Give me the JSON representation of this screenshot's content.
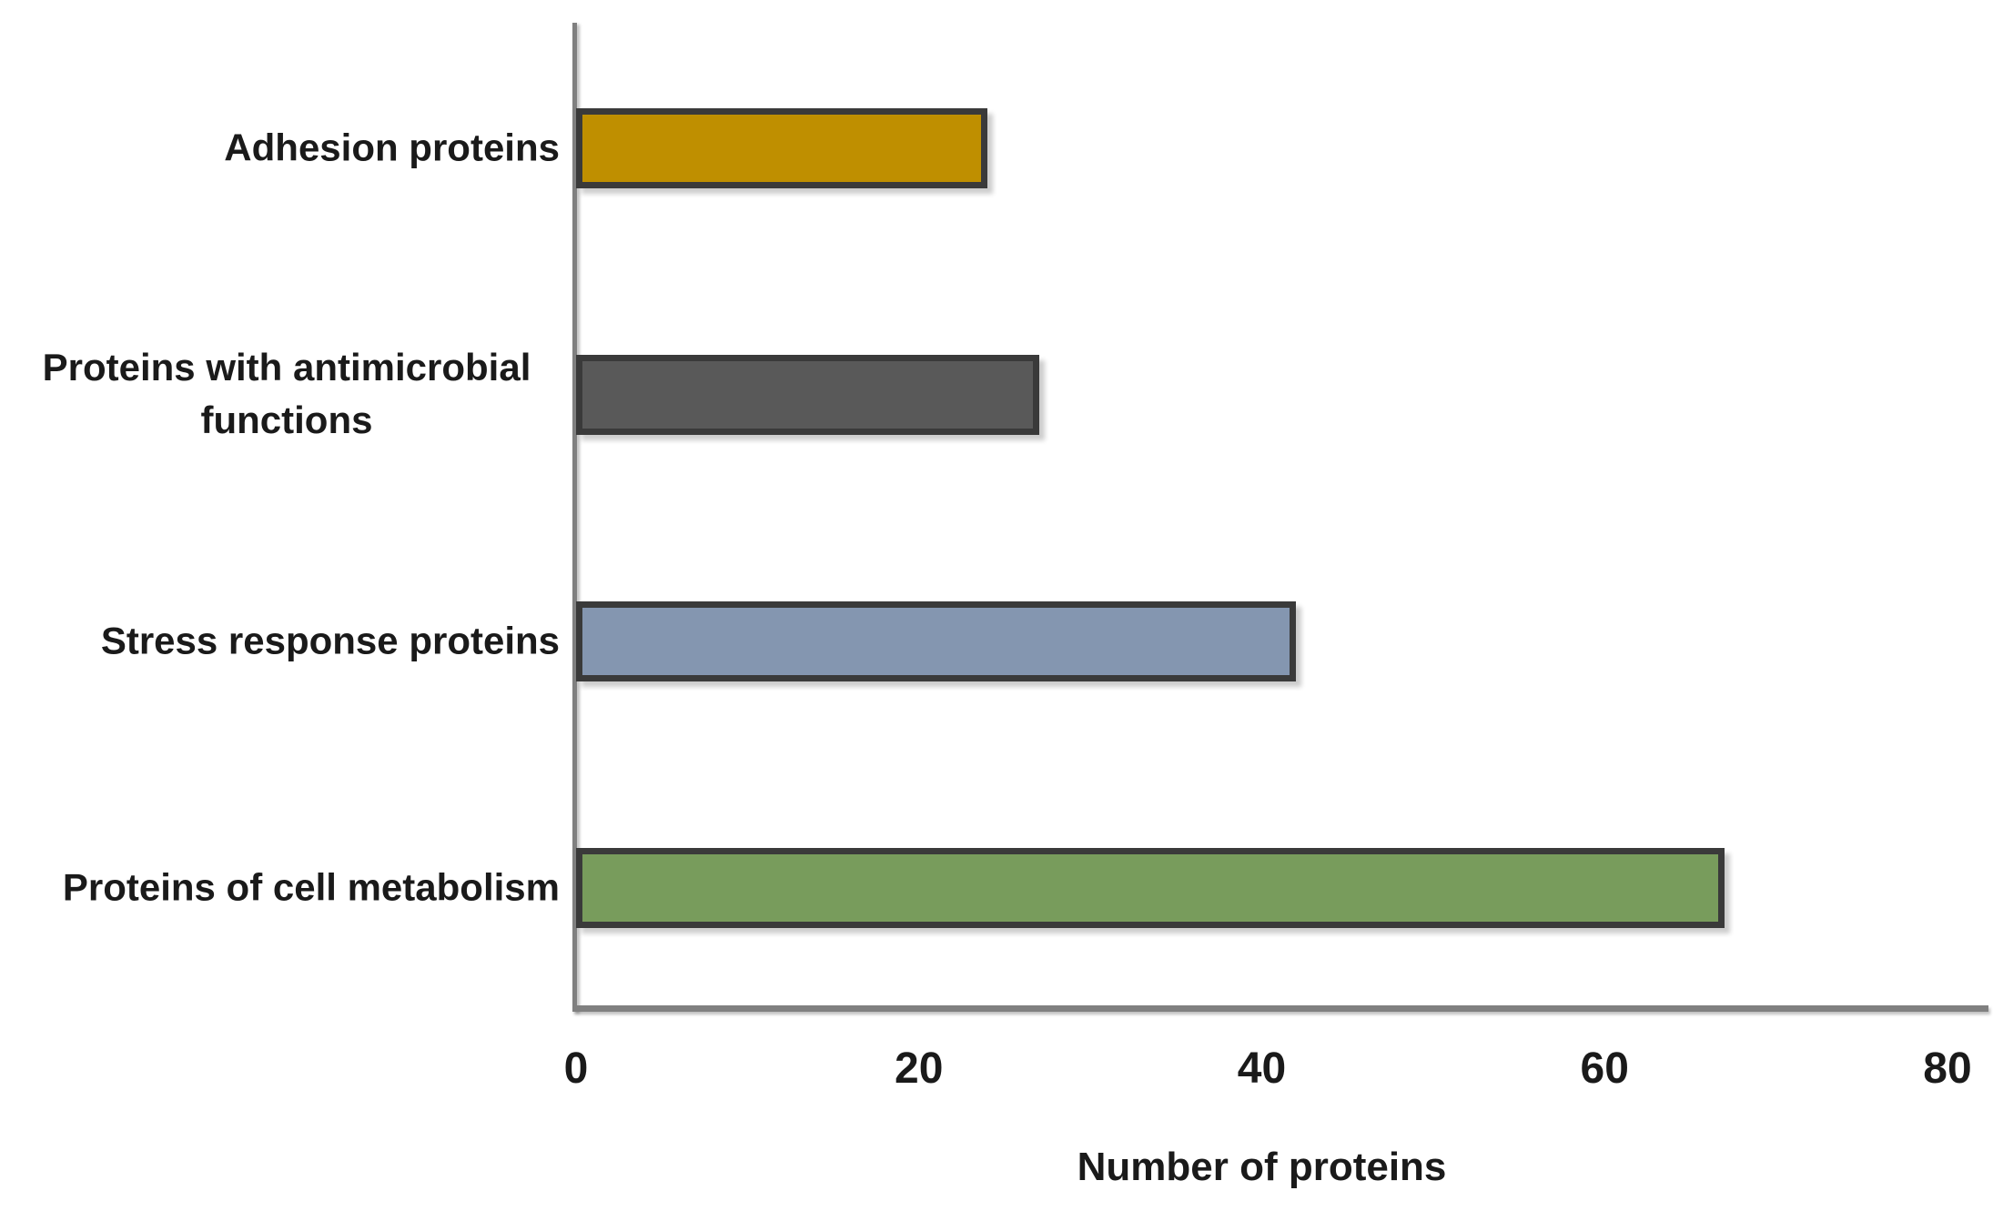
{
  "chart_data": {
    "type": "bar",
    "orientation": "horizontal",
    "categories": [
      "Adhesion proteins",
      "Proteins with antimicrobial functions",
      "Stress response proteins",
      "Proteins of cell metabolism"
    ],
    "values": [
      24,
      27,
      42,
      67
    ],
    "colors": [
      "#BF8F00",
      "#595959",
      "#8496B0",
      "#789C5C"
    ],
    "bar_border_color": "#3A3A3A",
    "axis_line_color": "#808080",
    "xlabel": "Number of proteins",
    "xlim": [
      0,
      80
    ],
    "xticks": [
      "0",
      "20",
      "40",
      "60",
      "80"
    ],
    "grid": false,
    "legend_position": "none",
    "background": "#FFFFFF"
  }
}
